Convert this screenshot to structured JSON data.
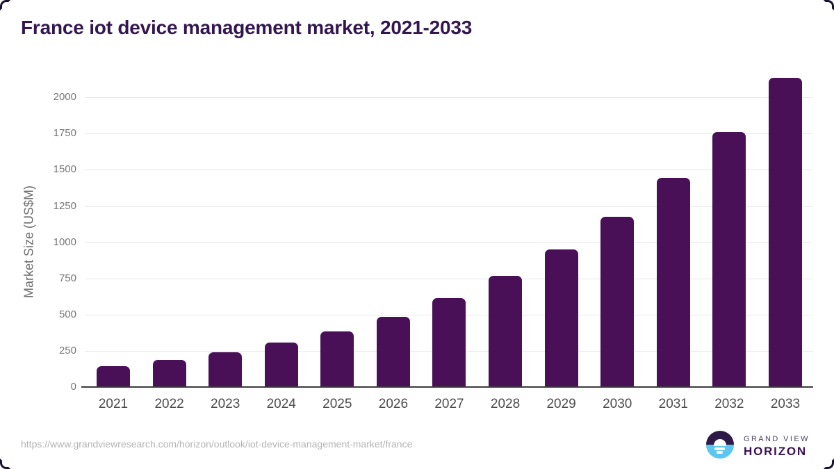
{
  "page": {
    "title": "France iot device management market, 2021-2033",
    "source_url": "https://www.grandviewresearch.com/horizon/outlook/iot-device-management-market/france"
  },
  "logo": {
    "line1": "GRAND VIEW",
    "line2": "HORIZON",
    "circle_top_color": "#2e1a47",
    "circle_bottom_color": "#5bc6f2"
  },
  "chart_data": {
    "type": "bar",
    "title": "France iot device management market, 2021-2033",
    "categories": [
      "2021",
      "2022",
      "2023",
      "2024",
      "2025",
      "2026",
      "2027",
      "2028",
      "2029",
      "2030",
      "2031",
      "2032",
      "2033"
    ],
    "values": [
      145,
      185,
      240,
      305,
      385,
      485,
      615,
      770,
      950,
      1175,
      1445,
      1760,
      2135
    ],
    "xlabel": "",
    "ylabel": "Market Size (US$M)",
    "yticks": [
      0,
      250,
      500,
      750,
      1000,
      1250,
      1500,
      1750,
      2000
    ],
    "ylim": [
      0,
      2160
    ],
    "bar_color": "#491058",
    "grid": true,
    "gridline_color": "#e7e7e7",
    "axis_color": "#3c3c3c",
    "legend": false
  }
}
